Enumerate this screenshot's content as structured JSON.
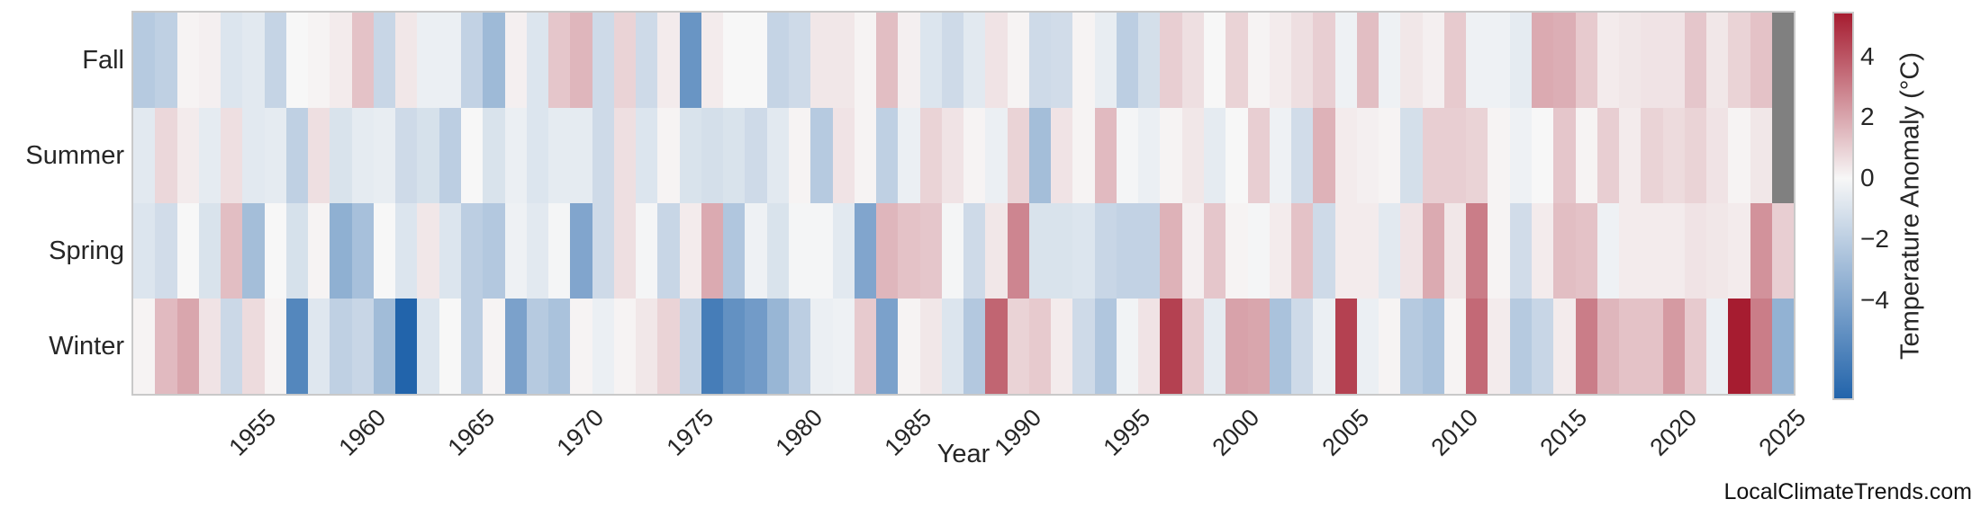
{
  "watermark": "LocalClimateTrends.com",
  "chart_data": {
    "type": "heatmap",
    "title": "",
    "xlabel": "Year",
    "ylabel": "",
    "grid": false,
    "legend_position": "right-colorbar",
    "rows": [
      "Fall",
      "Summer",
      "Spring",
      "Winter"
    ],
    "years": [
      1950,
      1951,
      1952,
      1953,
      1954,
      1955,
      1956,
      1957,
      1958,
      1959,
      1960,
      1961,
      1962,
      1963,
      1964,
      1965,
      1966,
      1967,
      1968,
      1969,
      1970,
      1971,
      1972,
      1973,
      1974,
      1975,
      1976,
      1977,
      1978,
      1979,
      1980,
      1981,
      1982,
      1983,
      1984,
      1985,
      1986,
      1987,
      1988,
      1989,
      1990,
      1991,
      1992,
      1993,
      1994,
      1995,
      1996,
      1997,
      1998,
      1999,
      2000,
      2001,
      2002,
      2003,
      2004,
      2005,
      2006,
      2007,
      2008,
      2009,
      2010,
      2011,
      2012,
      2013,
      2014,
      2015,
      2016,
      2017,
      2018,
      2019,
      2020,
      2021,
      2022,
      2023,
      2024,
      2025
    ],
    "x_tick_labels": [
      1955,
      1960,
      1965,
      1970,
      1975,
      1980,
      1985,
      1990,
      1995,
      2000,
      2005,
      2010,
      2015,
      2020,
      2025
    ],
    "series": [
      {
        "name": "Fall",
        "values": [
          -2.2,
          -1.9,
          0.1,
          0.2,
          -0.9,
          -0.7,
          -1.7,
          0.0,
          0.1,
          0.3,
          1.3,
          -1.6,
          0.4,
          -0.4,
          -0.4,
          -1.8,
          -3.0,
          0.2,
          -0.9,
          1.2,
          1.6,
          -1.4,
          0.9,
          -1.4,
          0.3,
          -4.8,
          0.3,
          0.0,
          0.0,
          -1.7,
          -1.4,
          0.4,
          0.4,
          0.1,
          1.4,
          0.2,
          -0.9,
          -1.4,
          -0.7,
          0.5,
          0.1,
          -1.4,
          -1.3,
          0.1,
          -0.5,
          -2.0,
          -1.2,
          1.0,
          0.6,
          0.0,
          0.9,
          0.1,
          0.3,
          0.6,
          1.0,
          -0.3,
          1.4,
          -0.3,
          0.4,
          0.2,
          1.1,
          -0.3,
          -0.3,
          -0.6,
          1.9,
          1.8,
          1.1,
          0.3,
          0.4,
          0.5,
          0.5,
          1.2,
          0.4,
          0.9,
          1.3,
          null
        ]
      },
      {
        "name": "Summer",
        "values": [
          -0.7,
          0.8,
          0.3,
          -0.6,
          0.6,
          -0.7,
          -0.6,
          -1.9,
          0.6,
          -1.0,
          -0.6,
          -0.5,
          -1.4,
          -1.1,
          -2.0,
          0.0,
          -1.0,
          -0.4,
          -0.9,
          -0.6,
          -0.6,
          -1.4,
          0.6,
          -0.9,
          0.1,
          -1.0,
          -1.2,
          -1.0,
          -1.4,
          -0.7,
          0.1,
          -2.2,
          0.5,
          0.1,
          -1.9,
          -0.4,
          0.9,
          0.5,
          0.1,
          -0.4,
          0.9,
          -2.8,
          0.5,
          0.1,
          1.5,
          -0.1,
          -0.4,
          0.1,
          0.4,
          -0.6,
          0.0,
          1.0,
          -0.3,
          -1.3,
          1.7,
          0.3,
          0.2,
          0.1,
          -1.2,
          1.0,
          1.0,
          0.9,
          0.1,
          -0.3,
          0.0,
          1.2,
          0.1,
          1.0,
          0.3,
          0.9,
          0.7,
          0.9,
          0.5,
          0.1,
          0.4,
          null
        ]
      },
      {
        "name": "Spring",
        "values": [
          -0.9,
          -1.3,
          0.0,
          -1.0,
          1.4,
          -2.8,
          0.0,
          -1.1,
          0.1,
          -3.5,
          -2.7,
          0.0,
          -0.9,
          0.4,
          -0.9,
          -2.0,
          -2.3,
          -0.3,
          -0.7,
          -0.1,
          -4.0,
          -1.4,
          0.6,
          -0.1,
          -1.6,
          0.3,
          1.9,
          -2.4,
          -0.3,
          -1.0,
          -0.1,
          -0.1,
          -0.7,
          -4.0,
          1.6,
          1.3,
          1.2,
          -0.1,
          -1.4,
          0.4,
          2.8,
          -1.0,
          -1.0,
          -0.9,
          -1.6,
          -1.8,
          -1.8,
          1.7,
          0.2,
          1.2,
          0.1,
          -0.1,
          0.3,
          1.3,
          -1.4,
          0.3,
          0.3,
          -0.7,
          0.5,
          1.9,
          0.4,
          3.0,
          0.1,
          -1.3,
          0.3,
          1.4,
          1.3,
          -0.3,
          0.3,
          0.3,
          0.3,
          0.5,
          0.4,
          0.3,
          2.5,
          1.0
        ]
      },
      {
        "name": "Winter",
        "values": [
          0.1,
          1.5,
          2.0,
          0.5,
          -1.5,
          0.7,
          0.1,
          -5.5,
          -0.8,
          -1.9,
          -1.6,
          -2.9,
          -7.2,
          -0.9,
          0.0,
          -2.0,
          0.1,
          -4.2,
          -2.2,
          -2.6,
          0.1,
          -0.4,
          0.1,
          0.4,
          0.9,
          -1.7,
          -6.0,
          -5.0,
          -4.5,
          -3.2,
          -2.0,
          -0.4,
          -0.3,
          1.1,
          -4.2,
          0.1,
          0.4,
          -0.9,
          -2.3,
          3.6,
          0.9,
          1.1,
          0.3,
          -1.4,
          -2.4,
          -0.2,
          0.5,
          4.5,
          1.1,
          -0.6,
          2.1,
          2.0,
          -2.6,
          -1.4,
          -0.4,
          4.5,
          -0.4,
          0.1,
          -2.2,
          -2.6,
          0.1,
          3.5,
          0.3,
          -2.2,
          -1.6,
          0.3,
          3.0,
          1.6,
          1.3,
          1.3,
          2.3,
          1.1,
          -0.4,
          5.4,
          3.0,
          -3.4
        ]
      }
    ],
    "colorbar": {
      "label": "Temperature Anomaly (°C)",
      "ticks": [
        4,
        2,
        0,
        -2,
        -4
      ],
      "vmax": 5.4,
      "vmin": -7.2,
      "color_positive": "#a61c30",
      "color_zero": "#f7f7f7",
      "color_negative": "#2264ab",
      "nan_color": "#808080"
    }
  }
}
